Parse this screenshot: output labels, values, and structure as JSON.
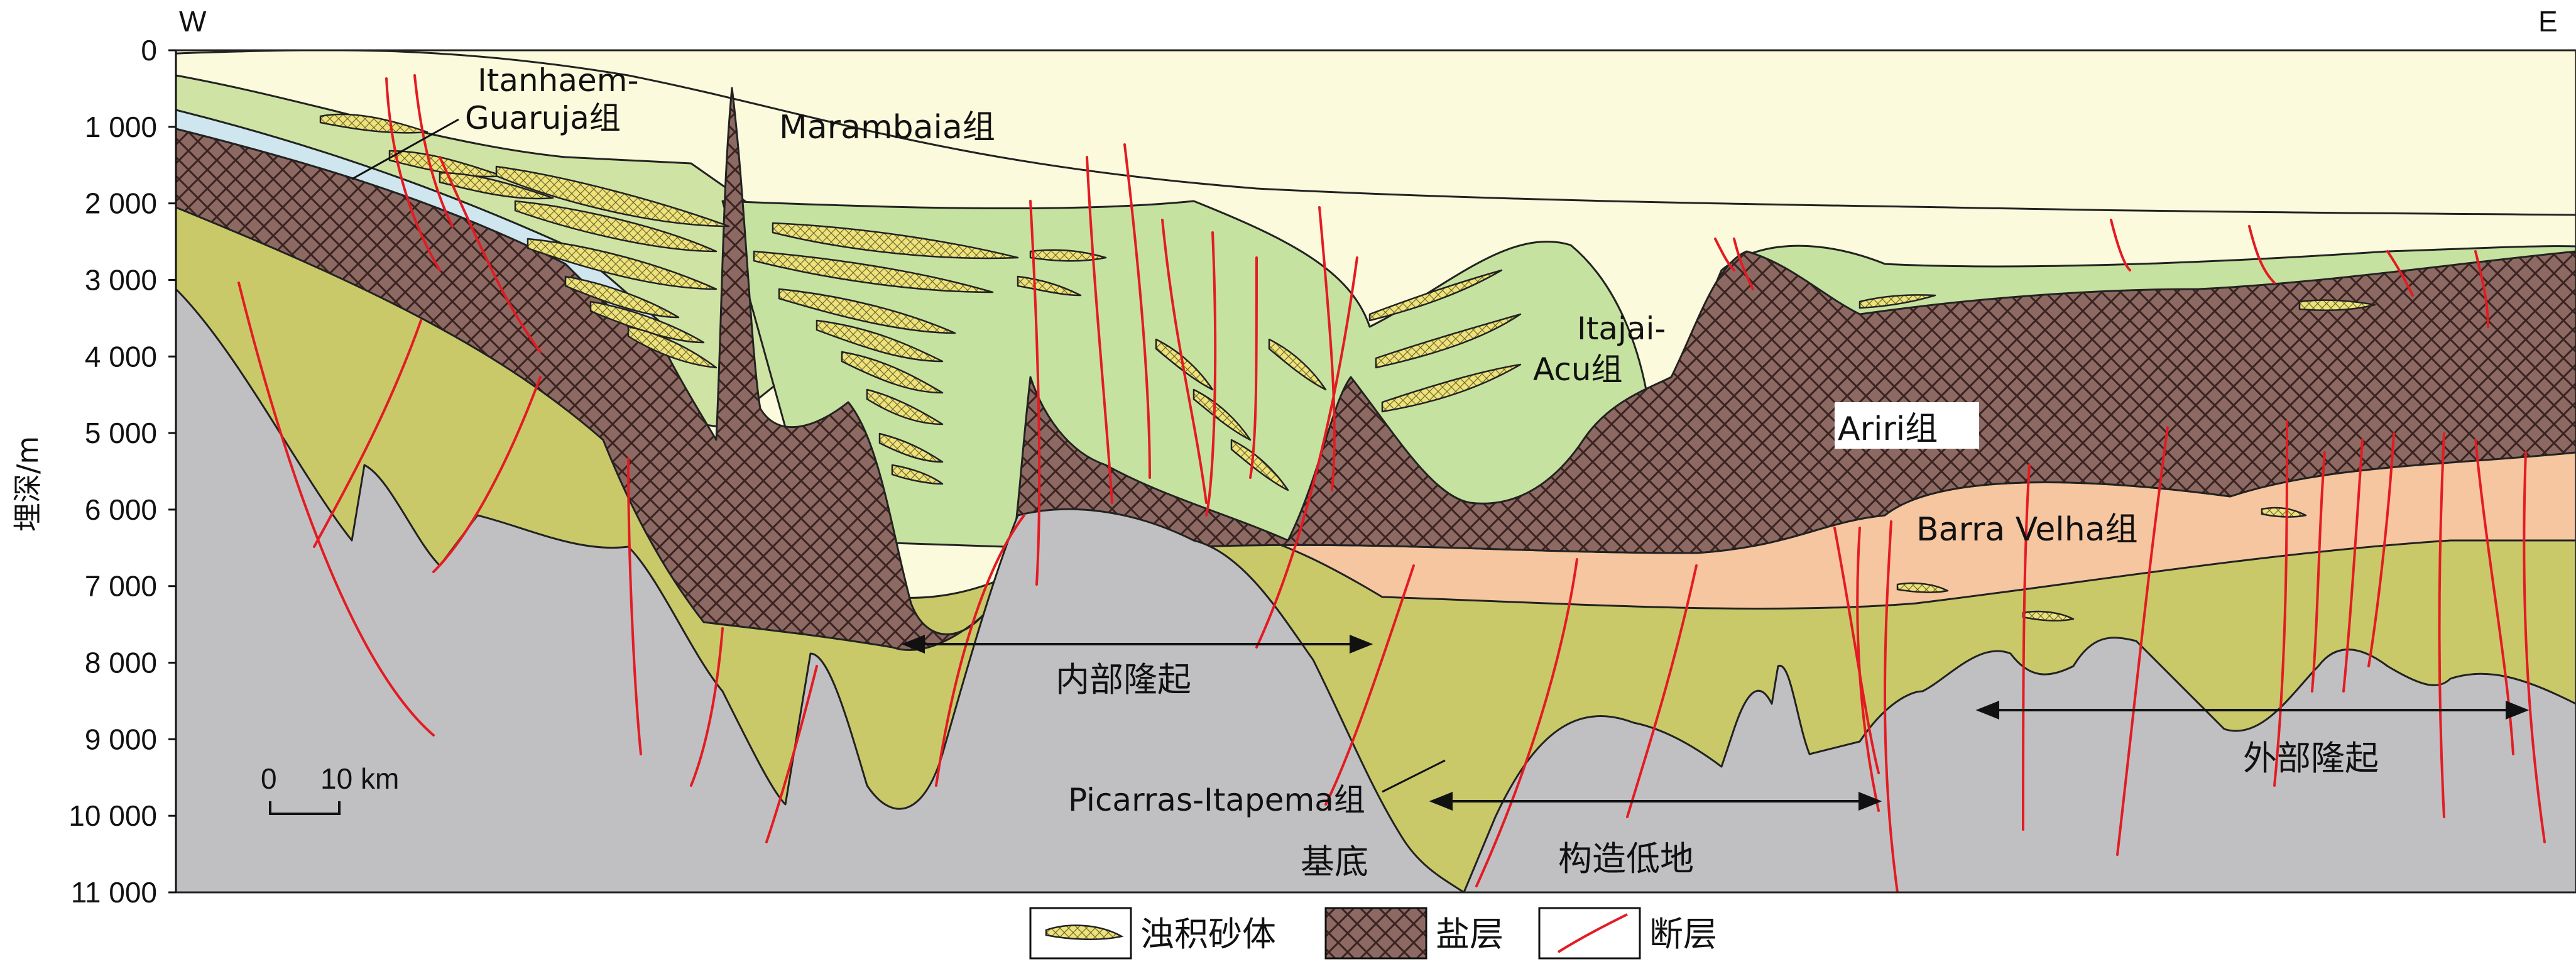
{
  "orientation": {
    "west": "W",
    "east": "E"
  },
  "y_axis": {
    "label": "埋深/m",
    "ticks": [
      "0",
      "1 000",
      "2 000",
      "3 000",
      "4 000",
      "5 000",
      "6 000",
      "7 000",
      "8 000",
      "9 000",
      "10 000",
      "11 000"
    ]
  },
  "scale_bar": {
    "zero": "0",
    "length": "10 km"
  },
  "formation_labels": {
    "itanhaem_line1": "Itanhaem-",
    "itanhaem_line2": "Guaruja组",
    "marambaia": "Marambaia组",
    "itajai_line1": "Itajai-",
    "itajai_line2": "Acu组",
    "ariri": "Ariri组",
    "barra_velha": "Barra Velha组",
    "picarras": "Picarras-Itapema组"
  },
  "structure_labels": {
    "inner_high": "内部隆起",
    "outer_high": "外部隆起",
    "structural_low": "构造低地",
    "basement": "基底"
  },
  "legend": [
    {
      "label": "浊积砂体",
      "icon": "turbidite-sand-icon"
    },
    {
      "label": "盐层",
      "icon": "salt-layer-icon"
    },
    {
      "label": "断层",
      "icon": "fault-icon"
    }
  ],
  "colors": {
    "basement": "#c0c0c2",
    "picarras": "#c9c96a",
    "barra_velha": "#f6c6a0",
    "salt": "#8c6a63",
    "anhydrite": "#cfe6ef",
    "itajai": "#c6e2a0",
    "itanhaem": "#cfe4a4",
    "marambaia": "#fbfadc",
    "turbidite": "#efe27a",
    "fault": "#e31b23"
  }
}
